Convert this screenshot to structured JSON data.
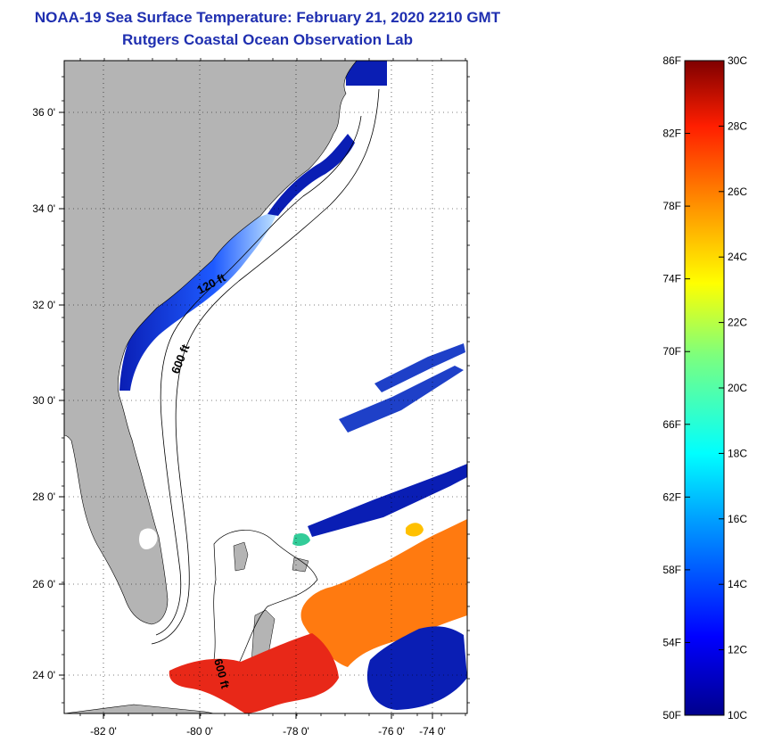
{
  "title": {
    "line1": "NOAA-19 Sea Surface Temperature:  February 21, 2020 2210 GMT",
    "line2": "Rutgers Coastal Ocean Observation Lab"
  },
  "map": {
    "x_ticks": [
      "-82 0'",
      "-80 0'",
      "-78 0'",
      "-76 0'",
      "-74 0'"
    ],
    "y_ticks": [
      "36 0'",
      "34 0'",
      "32 0'",
      "30 0'",
      "28 0'",
      "26 0'",
      "24 0'"
    ],
    "contour_labels": [
      "120 ft",
      "600 ft",
      "600 ft"
    ],
    "colors": {
      "land": "#b4b4b4",
      "ocean_no_data": "#ffffff",
      "cold": "#0a1eb4",
      "warm": "#ff7a10",
      "hot": "#e82818"
    }
  },
  "colorbar": {
    "fahrenheit_labels": [
      "86F",
      "82F",
      "78F",
      "74F",
      "70F",
      "66F",
      "62F",
      "58F",
      "54F",
      "50F"
    ],
    "celsius_labels": [
      "30C",
      "28C",
      "26C",
      "24C",
      "22C",
      "20C",
      "18C",
      "16C",
      "14C",
      "12C",
      "10C"
    ]
  }
}
